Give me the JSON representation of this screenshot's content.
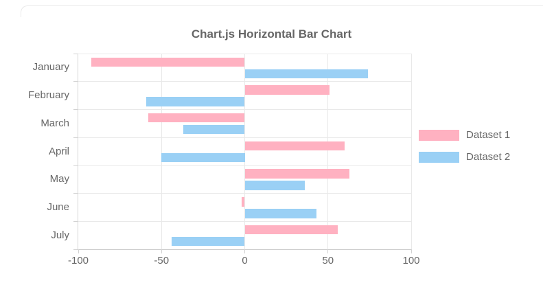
{
  "page": {
    "background": "#ffffff",
    "text_color": "#666666"
  },
  "chart_data": {
    "type": "bar",
    "orientation": "horizontal",
    "title": "Chart.js Horizontal Bar Chart",
    "categories": [
      "January",
      "February",
      "March",
      "April",
      "May",
      "June",
      "July"
    ],
    "series": [
      {
        "name": "Dataset 1",
        "color": "#FFB1C1",
        "values": [
          -92,
          51,
          -58,
          60,
          63,
          -2,
          56
        ]
      },
      {
        "name": "Dataset 2",
        "color": "#9AD0F5",
        "values": [
          74,
          -59,
          -37,
          -50,
          36,
          43,
          -44
        ]
      }
    ],
    "xlim": [
      -100,
      100
    ],
    "x_ticks": [
      -100,
      -50,
      0,
      50,
      100
    ],
    "grid": true,
    "legend_position": "right",
    "xlabel": "",
    "ylabel": ""
  }
}
